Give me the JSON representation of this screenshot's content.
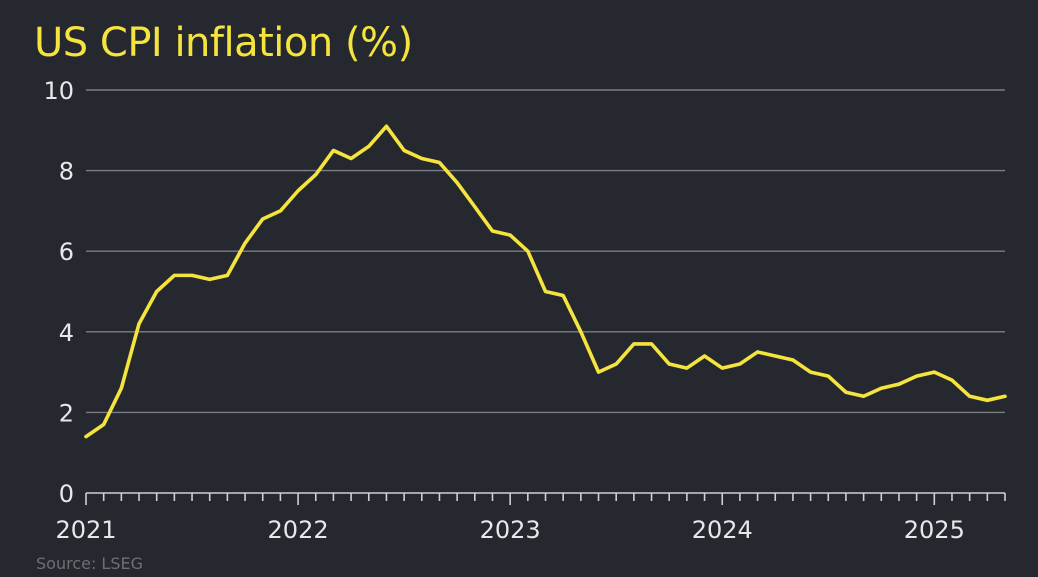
{
  "title": "US CPI inflation (%)",
  "source": "Source: LSEG",
  "colors": {
    "background": "#26282f",
    "line": "#f5e43d",
    "grid": "#7c7e84",
    "text": "#e8e8ea"
  },
  "chart_data": {
    "type": "line",
    "title": "US CPI inflation (%)",
    "xlabel": "",
    "ylabel": "",
    "ylim": [
      0,
      10
    ],
    "yticks": [
      0,
      2,
      4,
      6,
      8,
      10
    ],
    "xticks": [
      "2021",
      "2022",
      "2023",
      "2024",
      "2025"
    ],
    "grid": "horizontal",
    "x_start": "2021-01",
    "x_end": "2025-05",
    "x_frequency": "monthly",
    "series": [
      {
        "x": [
          "2021-01",
          "2021-02",
          "2021-03",
          "2021-04",
          "2021-05",
          "2021-06",
          "2021-07",
          "2021-08",
          "2021-09",
          "2021-10",
          "2021-11",
          "2021-12",
          "2022-01",
          "2022-02",
          "2022-03",
          "2022-04",
          "2022-05",
          "2022-06",
          "2022-07",
          "2022-08",
          "2022-09",
          "2022-10",
          "2022-11",
          "2022-12",
          "2023-01",
          "2023-02",
          "2023-03",
          "2023-04",
          "2023-05",
          "2023-06",
          "2023-07",
          "2023-08",
          "2023-09",
          "2023-10",
          "2023-11",
          "2023-12",
          "2024-01",
          "2024-02",
          "2024-03",
          "2024-04",
          "2024-05",
          "2024-06",
          "2024-07",
          "2024-08",
          "2024-09",
          "2024-10",
          "2024-11",
          "2024-12",
          "2025-01",
          "2025-02",
          "2025-03",
          "2025-04",
          "2025-05"
        ],
        "values": [
          1.4,
          1.7,
          2.6,
          4.2,
          5.0,
          5.4,
          5.4,
          5.3,
          5.4,
          6.2,
          6.8,
          7.0,
          7.5,
          7.9,
          8.5,
          8.3,
          8.6,
          9.1,
          8.5,
          8.3,
          8.2,
          7.7,
          7.1,
          6.5,
          6.4,
          6.0,
          5.0,
          4.9,
          4.0,
          3.0,
          3.2,
          3.7,
          3.7,
          3.2,
          3.1,
          3.4,
          3.1,
          3.2,
          3.5,
          3.4,
          3.3,
          3.0,
          2.9,
          2.5,
          2.4,
          2.6,
          2.7,
          2.9,
          3.0,
          2.8,
          2.4,
          2.3,
          2.4
        ]
      }
    ]
  }
}
